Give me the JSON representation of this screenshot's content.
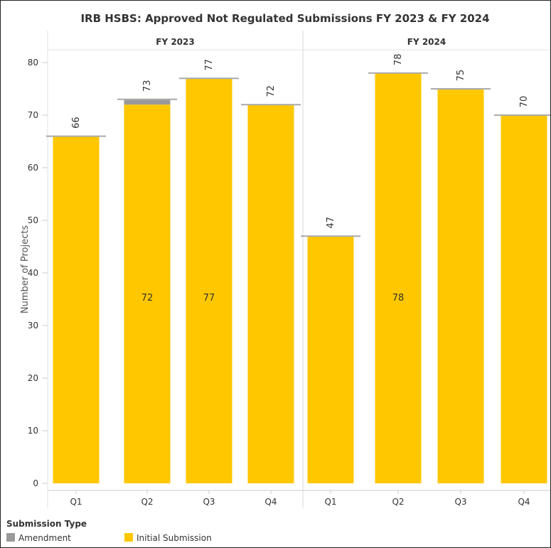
{
  "chart_data": {
    "type": "bar",
    "stacked": true,
    "title": "IRB HSBS: Approved Not Regulated Submissions  FY 2023 & FY 2024",
    "ylabel": "Number of Projects",
    "xlabel": "",
    "ylim": [
      0,
      83
    ],
    "yticks": [
      0,
      10,
      20,
      30,
      40,
      50,
      60,
      70,
      80
    ],
    "grid": false,
    "legend": {
      "title": "Submission Type",
      "placement": "bottom-left",
      "items": [
        {
          "name": "Amendment",
          "color": "#999999"
        },
        {
          "name": "Initial Submission",
          "color": "#FFC700"
        }
      ]
    },
    "panels": [
      {
        "label": "FY 2023",
        "categories": [
          "Q1",
          "Q2",
          "Q3",
          "Q4"
        ],
        "series": [
          {
            "name": "Initial Submission",
            "values": [
              66,
              72,
              77,
              72
            ]
          },
          {
            "name": "Amendment",
            "values": [
              0,
              1,
              0,
              0
            ]
          }
        ],
        "totals": [
          66,
          73,
          77,
          72
        ],
        "inner_labels": [
          "",
          "72",
          "77",
          ""
        ]
      },
      {
        "label": "FY 2024",
        "categories": [
          "Q1",
          "Q2",
          "Q3",
          "Q4"
        ],
        "series": [
          {
            "name": "Initial Submission",
            "values": [
              47,
              78,
              75,
              70
            ]
          },
          {
            "name": "Amendment",
            "values": [
              0,
              0,
              0,
              0
            ]
          }
        ],
        "totals": [
          47,
          78,
          75,
          70
        ],
        "inner_labels": [
          "",
          "78",
          "",
          ""
        ]
      }
    ]
  }
}
